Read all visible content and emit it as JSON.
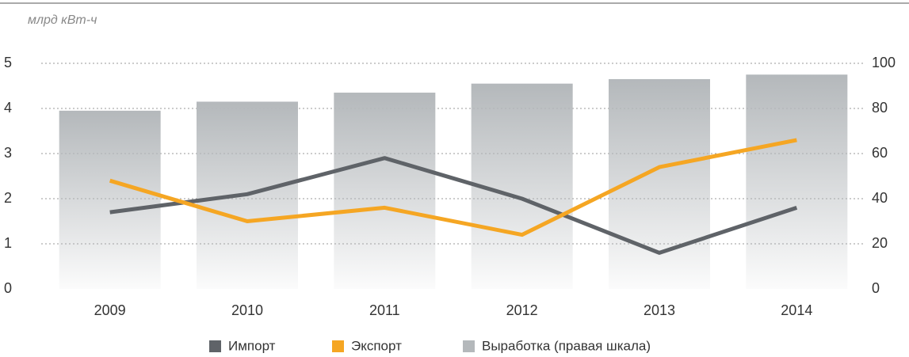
{
  "chart_data": {
    "type": "bar",
    "subtitle": "млрд кВт-ч",
    "categories": [
      "2009",
      "2010",
      "2011",
      "2012",
      "2013",
      "2014"
    ],
    "ylim": [
      0,
      5
    ],
    "yticks": [
      0,
      1,
      2,
      3,
      4,
      5
    ],
    "y2lim": [
      0,
      100
    ],
    "y2ticks": [
      0,
      20,
      40,
      60,
      80,
      100
    ],
    "grid": true,
    "legend": "bottom",
    "series": [
      {
        "name": "Импорт",
        "type": "line",
        "color": "#5f6368",
        "values": [
          1.7,
          2.1,
          2.9,
          2.0,
          0.8,
          1.8
        ]
      },
      {
        "name": "Экспорт",
        "type": "line",
        "color": "#f5a623",
        "values": [
          2.4,
          1.5,
          1.8,
          1.2,
          2.7,
          3.3
        ]
      },
      {
        "name": "Выработка (правая шкала)",
        "type": "bar",
        "axis": "y2",
        "color": "#b4b8bb",
        "values": [
          79,
          83,
          87,
          91,
          93,
          95
        ]
      }
    ]
  }
}
